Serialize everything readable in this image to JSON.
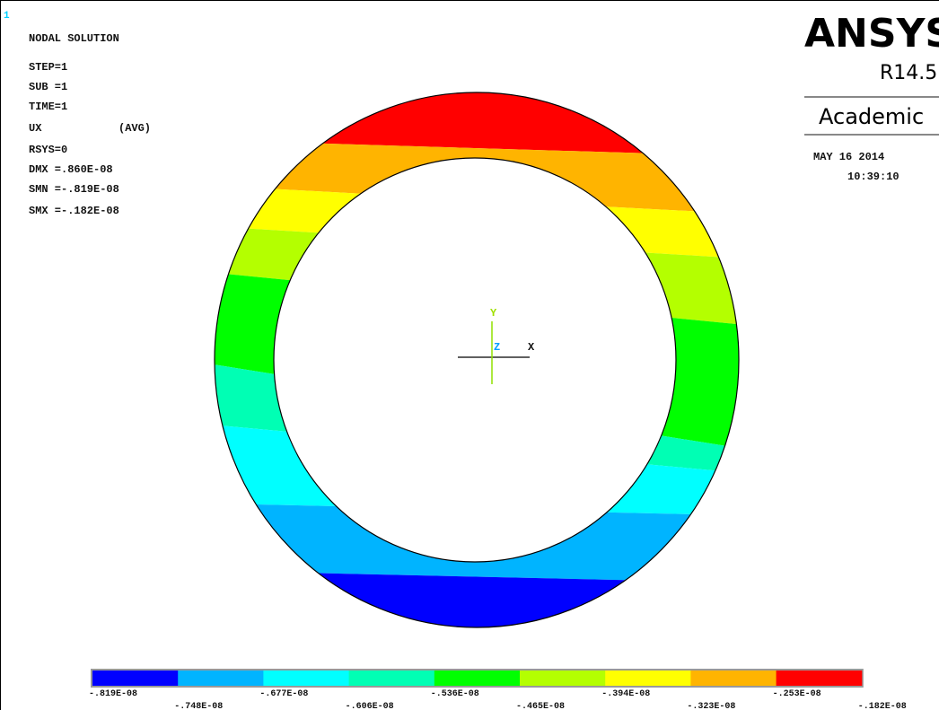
{
  "window_number": "1",
  "header": {
    "title": "NODAL SOLUTION",
    "lines": [
      "STEP=1",
      "SUB =1",
      "TIME=1"
    ],
    "item": "UX",
    "average": "(AVG)",
    "stats": [
      "RSYS=0",
      "DMX =.860E-08",
      "SMN =-.819E-08",
      "SMX =-.182E-08"
    ]
  },
  "logo": {
    "name": "ANSYS",
    "version": "R14.5",
    "license": "Academic"
  },
  "date": "MAY 16 2014",
  "time": "10:39:10",
  "triad": {
    "y": "Y",
    "z": "Z",
    "x": "X"
  },
  "legend": {
    "colors": [
      "#0000ff",
      "#00b4ff",
      "#00ffff",
      "#00ffb4",
      "#00ff00",
      "#b4ff00",
      "#ffff00",
      "#ffb400",
      "#ff0000"
    ],
    "labels": [
      "-.819E-08",
      "-.748E-08",
      "-.677E-08",
      "-.606E-08",
      "-.536E-08",
      "-.465E-08",
      "-.394E-08",
      "-.323E-08",
      "-.253E-08",
      "-.182E-08"
    ]
  }
}
